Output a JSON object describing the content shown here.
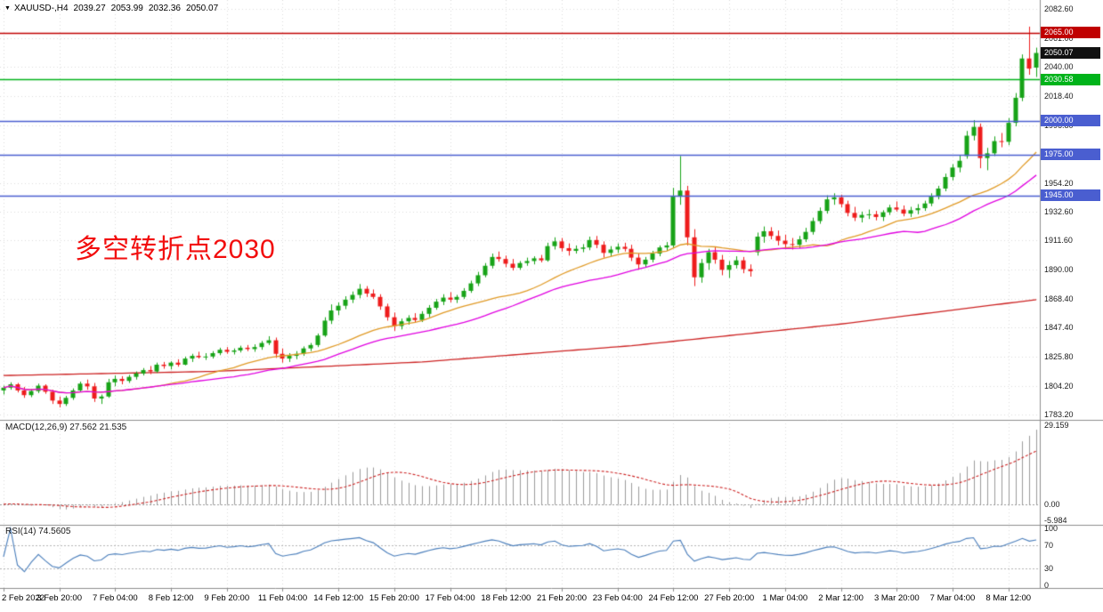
{
  "window": {
    "collapse_icon": "▼",
    "title": "XAUUSD-,H4",
    "open": "2039.27",
    "high": "2053.99",
    "low": "2032.36",
    "close": "2050.07"
  },
  "annotation": {
    "text": "多空转折点2030",
    "color": "#f20d0d"
  },
  "indicators": {
    "macd": {
      "label": "MACD(12,26,9) 27.562 21.535",
      "params": "12,26,9",
      "value": 27.562,
      "signal_value": 21.535,
      "axis_labels": [
        "29.159",
        "0.00",
        "-5.984"
      ],
      "axis_values": [
        29.159,
        0.0,
        -5.984
      ],
      "hist_color": "#9b9b9b",
      "signal_color": "#cc2222"
    },
    "rsi": {
      "label": "RSI(14) 74.5605",
      "period": 14,
      "value": 74.5605,
      "axis_labels": [
        "100",
        "70",
        "30",
        "0"
      ],
      "axis_values": [
        100,
        70,
        30,
        0
      ],
      "level_lines": [
        70,
        30
      ],
      "color": "#4a7ebb"
    }
  },
  "chart_data": {
    "type": "candlestick",
    "symbol": "XAUUSD",
    "timeframe": "H4",
    "title": "XAUUSD- H4 chart with MAs, horizontal levels, MACD and RSI",
    "ylim": [
      1783.2,
      2082.6
    ],
    "y_axis_labels": [
      "2082.60",
      "2061.00",
      "2040.00",
      "2018.40",
      "1996.80",
      "1975.20",
      "1954.20",
      "1932.60",
      "1911.60",
      "1890.00",
      "1868.40",
      "1847.40",
      "1825.80",
      "1804.20",
      "1783.20"
    ],
    "x_tick_labels": [
      "2 Feb 2022",
      "3 Feb 20:00",
      "7 Feb 04:00",
      "8 Feb 12:00",
      "9 Feb 20:00",
      "11 Feb 04:00",
      "14 Feb 12:00",
      "15 Feb 20:00",
      "17 Feb 04:00",
      "18 Feb 12:00",
      "21 Feb 20:00",
      "23 Feb 04:00",
      "24 Feb 12:00",
      "27 Feb 20:00",
      "1 Mar 04:00",
      "2 Mar 12:00",
      "3 Mar 20:00",
      "7 Mar 04:00",
      "8 Mar 12:00"
    ],
    "x_tick_every_bars": 8,
    "up_color": "#17a317",
    "down_color": "#ee1c1c",
    "grid_color": "#dcdcdc",
    "columns": [
      "open",
      "high",
      "low",
      "close"
    ],
    "candles_ohlc": [
      [
        1801.0,
        1804.5,
        1798.0,
        1803.0
      ],
      [
        1803.0,
        1807.0,
        1801.5,
        1805.5
      ],
      [
        1805.5,
        1806.5,
        1799.5,
        1801.0
      ],
      [
        1801.0,
        1803.5,
        1795.5,
        1797.5
      ],
      [
        1797.5,
        1802.0,
        1796.0,
        1800.5
      ],
      [
        1800.5,
        1806.0,
        1799.0,
        1804.5
      ],
      [
        1804.5,
        1805.5,
        1798.5,
        1800.0
      ],
      [
        1800.0,
        1801.5,
        1791.0,
        1793.5
      ],
      [
        1793.5,
        1796.5,
        1788.5,
        1791.0
      ],
      [
        1791.0,
        1797.0,
        1789.5,
        1795.5
      ],
      [
        1795.5,
        1802.5,
        1794.0,
        1801.0
      ],
      [
        1801.0,
        1807.5,
        1800.0,
        1806.0
      ],
      [
        1806.0,
        1809.0,
        1801.5,
        1804.0
      ],
      [
        1804.0,
        1806.5,
        1792.5,
        1795.0
      ],
      [
        1795.0,
        1798.0,
        1791.0,
        1796.5
      ],
      [
        1796.5,
        1809.5,
        1795.5,
        1807.0
      ],
      [
        1807.0,
        1812.0,
        1804.0,
        1809.5
      ],
      [
        1809.5,
        1811.5,
        1805.5,
        1808.0
      ],
      [
        1808.0,
        1812.5,
        1806.5,
        1811.0
      ],
      [
        1811.0,
        1815.0,
        1809.0,
        1813.5
      ],
      [
        1813.5,
        1817.5,
        1812.0,
        1816.0
      ],
      [
        1816.0,
        1819.0,
        1813.0,
        1815.0
      ],
      [
        1815.0,
        1821.5,
        1814.0,
        1820.0
      ],
      [
        1820.0,
        1822.0,
        1817.0,
        1819.0
      ],
      [
        1819.0,
        1822.5,
        1816.5,
        1821.5
      ],
      [
        1821.5,
        1824.0,
        1818.5,
        1820.0
      ],
      [
        1820.0,
        1826.0,
        1819.5,
        1824.5
      ],
      [
        1824.5,
        1828.0,
        1822.0,
        1826.5
      ],
      [
        1826.5,
        1829.5,
        1824.5,
        1825.5
      ],
      [
        1825.5,
        1828.5,
        1823.5,
        1826.0
      ],
      [
        1826.0,
        1830.0,
        1824.5,
        1828.5
      ],
      [
        1828.5,
        1832.5,
        1827.0,
        1831.0
      ],
      [
        1831.0,
        1833.0,
        1828.0,
        1829.5
      ],
      [
        1829.5,
        1832.0,
        1827.5,
        1830.5
      ],
      [
        1830.5,
        1834.0,
        1829.0,
        1832.5
      ],
      [
        1832.5,
        1834.5,
        1830.0,
        1831.5
      ],
      [
        1831.5,
        1835.0,
        1829.5,
        1833.0
      ],
      [
        1833.0,
        1837.5,
        1831.0,
        1836.0
      ],
      [
        1836.0,
        1841.0,
        1834.5,
        1838.0
      ],
      [
        1838.0,
        1840.0,
        1825.0,
        1828.0
      ],
      [
        1828.0,
        1832.0,
        1821.5,
        1824.5
      ],
      [
        1824.5,
        1828.5,
        1822.0,
        1826.5
      ],
      [
        1826.5,
        1830.0,
        1824.0,
        1828.0
      ],
      [
        1828.0,
        1833.5,
        1826.5,
        1832.0
      ],
      [
        1832.0,
        1836.0,
        1830.0,
        1834.5
      ],
      [
        1834.5,
        1843.0,
        1833.0,
        1841.5
      ],
      [
        1841.5,
        1855.0,
        1840.5,
        1852.5
      ],
      [
        1852.5,
        1864.5,
        1850.0,
        1860.0
      ],
      [
        1860.0,
        1866.0,
        1856.5,
        1863.5
      ],
      [
        1863.5,
        1870.5,
        1861.0,
        1868.0
      ],
      [
        1868.0,
        1874.0,
        1865.5,
        1871.5
      ],
      [
        1871.5,
        1879.5,
        1869.0,
        1876.0
      ],
      [
        1876.0,
        1878.0,
        1870.0,
        1872.5
      ],
      [
        1872.5,
        1875.5,
        1868.5,
        1870.0
      ],
      [
        1870.0,
        1872.0,
        1860.5,
        1863.0
      ],
      [
        1863.0,
        1865.0,
        1852.5,
        1855.0
      ],
      [
        1855.0,
        1858.5,
        1845.0,
        1848.5
      ],
      [
        1848.5,
        1854.0,
        1846.0,
        1852.0
      ],
      [
        1852.0,
        1856.5,
        1849.5,
        1854.5
      ],
      [
        1854.5,
        1858.0,
        1851.0,
        1853.0
      ],
      [
        1853.0,
        1859.5,
        1851.5,
        1857.5
      ],
      [
        1857.5,
        1864.0,
        1855.0,
        1862.0
      ],
      [
        1862.0,
        1868.5,
        1860.5,
        1866.5
      ],
      [
        1866.5,
        1872.0,
        1864.0,
        1869.5
      ],
      [
        1869.5,
        1873.5,
        1866.0,
        1868.0
      ],
      [
        1868.0,
        1871.5,
        1865.5,
        1870.0
      ],
      [
        1870.0,
        1876.5,
        1868.5,
        1874.5
      ],
      [
        1874.5,
        1882.0,
        1873.0,
        1880.0
      ],
      [
        1880.0,
        1888.5,
        1878.0,
        1886.0
      ],
      [
        1886.0,
        1895.0,
        1884.5,
        1893.0
      ],
      [
        1893.0,
        1902.0,
        1891.0,
        1899.5
      ],
      [
        1899.5,
        1903.5,
        1896.0,
        1898.0
      ],
      [
        1898.0,
        1900.5,
        1892.0,
        1894.5
      ],
      [
        1894.5,
        1898.0,
        1889.5,
        1891.5
      ],
      [
        1891.5,
        1896.5,
        1890.0,
        1895.0
      ],
      [
        1895.0,
        1899.0,
        1893.0,
        1896.5
      ],
      [
        1896.5,
        1900.0,
        1894.0,
        1898.5
      ],
      [
        1898.5,
        1901.0,
        1895.5,
        1897.0
      ],
      [
        1897.0,
        1910.0,
        1896.0,
        1907.5
      ],
      [
        1907.5,
        1914.0,
        1905.0,
        1911.0
      ],
      [
        1911.0,
        1913.5,
        1903.5,
        1906.0
      ],
      [
        1906.0,
        1909.5,
        1900.5,
        1904.0
      ],
      [
        1904.0,
        1908.0,
        1902.0,
        1905.5
      ],
      [
        1905.5,
        1909.0,
        1903.0,
        1906.5
      ],
      [
        1906.5,
        1914.5,
        1904.5,
        1912.0
      ],
      [
        1912.0,
        1915.0,
        1906.0,
        1908.5
      ],
      [
        1908.5,
        1911.0,
        1899.0,
        1902.5
      ],
      [
        1902.5,
        1907.5,
        1900.0,
        1905.0
      ],
      [
        1905.0,
        1909.5,
        1902.5,
        1907.0
      ],
      [
        1907.0,
        1910.0,
        1903.5,
        1905.5
      ],
      [
        1905.5,
        1908.5,
        1896.5,
        1899.0
      ],
      [
        1899.0,
        1902.0,
        1890.0,
        1894.0
      ],
      [
        1894.0,
        1899.5,
        1892.0,
        1897.5
      ],
      [
        1897.5,
        1904.0,
        1895.5,
        1902.0
      ],
      [
        1902.0,
        1908.0,
        1900.0,
        1906.5
      ],
      [
        1906.5,
        1910.5,
        1904.0,
        1908.0
      ],
      [
        1908.0,
        1950.5,
        1906.0,
        1944.0
      ],
      [
        1944.0,
        1974.0,
        1938.0,
        1948.5
      ],
      [
        1948.5,
        1952.0,
        1908.0,
        1914.0
      ],
      [
        1914.0,
        1920.0,
        1878.0,
        1884.5
      ],
      [
        1884.5,
        1898.0,
        1880.5,
        1895.0
      ],
      [
        1895.0,
        1905.5,
        1890.0,
        1903.0
      ],
      [
        1903.0,
        1907.0,
        1894.5,
        1897.5
      ],
      [
        1897.5,
        1901.0,
        1886.0,
        1890.0
      ],
      [
        1890.0,
        1896.5,
        1884.0,
        1893.5
      ],
      [
        1893.5,
        1900.0,
        1891.0,
        1897.0
      ],
      [
        1897.0,
        1899.5,
        1887.5,
        1890.5
      ],
      [
        1890.5,
        1894.0,
        1885.0,
        1889.0
      ],
      [
        1903.0,
        1917.5,
        1900.5,
        1914.5
      ],
      [
        1914.5,
        1922.0,
        1910.0,
        1918.5
      ],
      [
        1918.5,
        1921.5,
        1912.5,
        1915.0
      ],
      [
        1915.0,
        1919.0,
        1908.0,
        1911.5
      ],
      [
        1911.5,
        1916.0,
        1906.5,
        1909.0
      ],
      [
        1909.0,
        1913.5,
        1905.0,
        1908.5
      ],
      [
        1908.5,
        1915.0,
        1906.0,
        1912.5
      ],
      [
        1912.5,
        1921.0,
        1910.5,
        1918.0
      ],
      [
        1918.0,
        1928.5,
        1916.0,
        1926.0
      ],
      [
        1926.0,
        1936.0,
        1924.0,
        1933.5
      ],
      [
        1933.5,
        1945.0,
        1931.5,
        1942.0
      ],
      [
        1942.0,
        1946.5,
        1938.0,
        1943.5
      ],
      [
        1943.5,
        1945.5,
        1936.0,
        1938.5
      ],
      [
        1938.5,
        1941.0,
        1929.5,
        1932.0
      ],
      [
        1932.0,
        1936.5,
        1926.0,
        1928.5
      ],
      [
        1928.5,
        1933.0,
        1925.0,
        1930.5
      ],
      [
        1930.5,
        1934.5,
        1927.5,
        1931.0
      ],
      [
        1931.0,
        1933.5,
        1926.5,
        1929.0
      ],
      [
        1929.0,
        1934.0,
        1926.0,
        1932.5
      ],
      [
        1932.5,
        1938.0,
        1930.5,
        1936.0
      ],
      [
        1936.0,
        1940.5,
        1933.0,
        1934.5
      ],
      [
        1934.5,
        1937.5,
        1929.5,
        1931.5
      ],
      [
        1931.5,
        1936.5,
        1929.0,
        1934.0
      ],
      [
        1934.0,
        1938.5,
        1931.0,
        1935.5
      ],
      [
        1935.5,
        1941.0,
        1933.5,
        1939.0
      ],
      [
        1939.0,
        1946.5,
        1937.0,
        1944.0
      ],
      [
        1944.0,
        1952.0,
        1942.0,
        1950.0
      ],
      [
        1950.0,
        1961.0,
        1948.0,
        1958.5
      ],
      [
        1958.5,
        1968.0,
        1956.0,
        1965.5
      ],
      [
        1965.5,
        1974.5,
        1962.0,
        1970.5
      ],
      [
        1974.0,
        1992.5,
        1972.0,
        1989.0
      ],
      [
        1989.0,
        2000.5,
        1985.5,
        1995.5
      ],
      [
        1995.5,
        1998.0,
        1965.0,
        1972.5
      ],
      [
        1972.5,
        1980.0,
        1963.5,
        1976.0
      ],
      [
        1976.0,
        1988.5,
        1974.0,
        1985.0
      ],
      [
        1985.0,
        1991.0,
        1980.5,
        1984.5
      ],
      [
        1984.5,
        2002.0,
        1982.0,
        1998.5
      ],
      [
        1998.5,
        2020.5,
        1996.0,
        2017.0
      ],
      [
        2017.0,
        2049.0,
        2014.5,
        2046.0
      ],
      [
        2046.0,
        2069.5,
        2034.0,
        2038.5
      ],
      [
        2039.27,
        2053.99,
        2032.36,
        2050.07
      ]
    ],
    "moving_averages": [
      {
        "name": "ma-fast",
        "period": 21,
        "color": "#e09a26",
        "source": "sma-of-close"
      },
      {
        "name": "ma-mid",
        "period": 34,
        "color": "#e000e0",
        "source": "sma-of-close"
      },
      {
        "name": "ma-slow",
        "color": "#cc2222",
        "anchors": [
          [
            0,
            1812
          ],
          [
            30,
            1815
          ],
          [
            60,
            1822
          ],
          [
            90,
            1834
          ],
          [
            120,
            1850
          ],
          [
            148,
            1868
          ]
        ]
      }
    ],
    "horizontal_levels": [
      {
        "price": 2065.0,
        "label": "2065.00",
        "color": "#c00000"
      },
      {
        "price": 2030.58,
        "label": "2030.58",
        "color": "#00b31a"
      },
      {
        "price": 2000.0,
        "label": "2000.00",
        "color": "#4a5ed0"
      },
      {
        "price": 1975.0,
        "label": "1975.00",
        "color": "#4a5ed0"
      },
      {
        "price": 1945.0,
        "label": "1945.00",
        "color": "#4a5ed0"
      }
    ],
    "current_price": 2050.07,
    "current_price_label": "2050.07",
    "current_price_badge_color": "#111111"
  }
}
